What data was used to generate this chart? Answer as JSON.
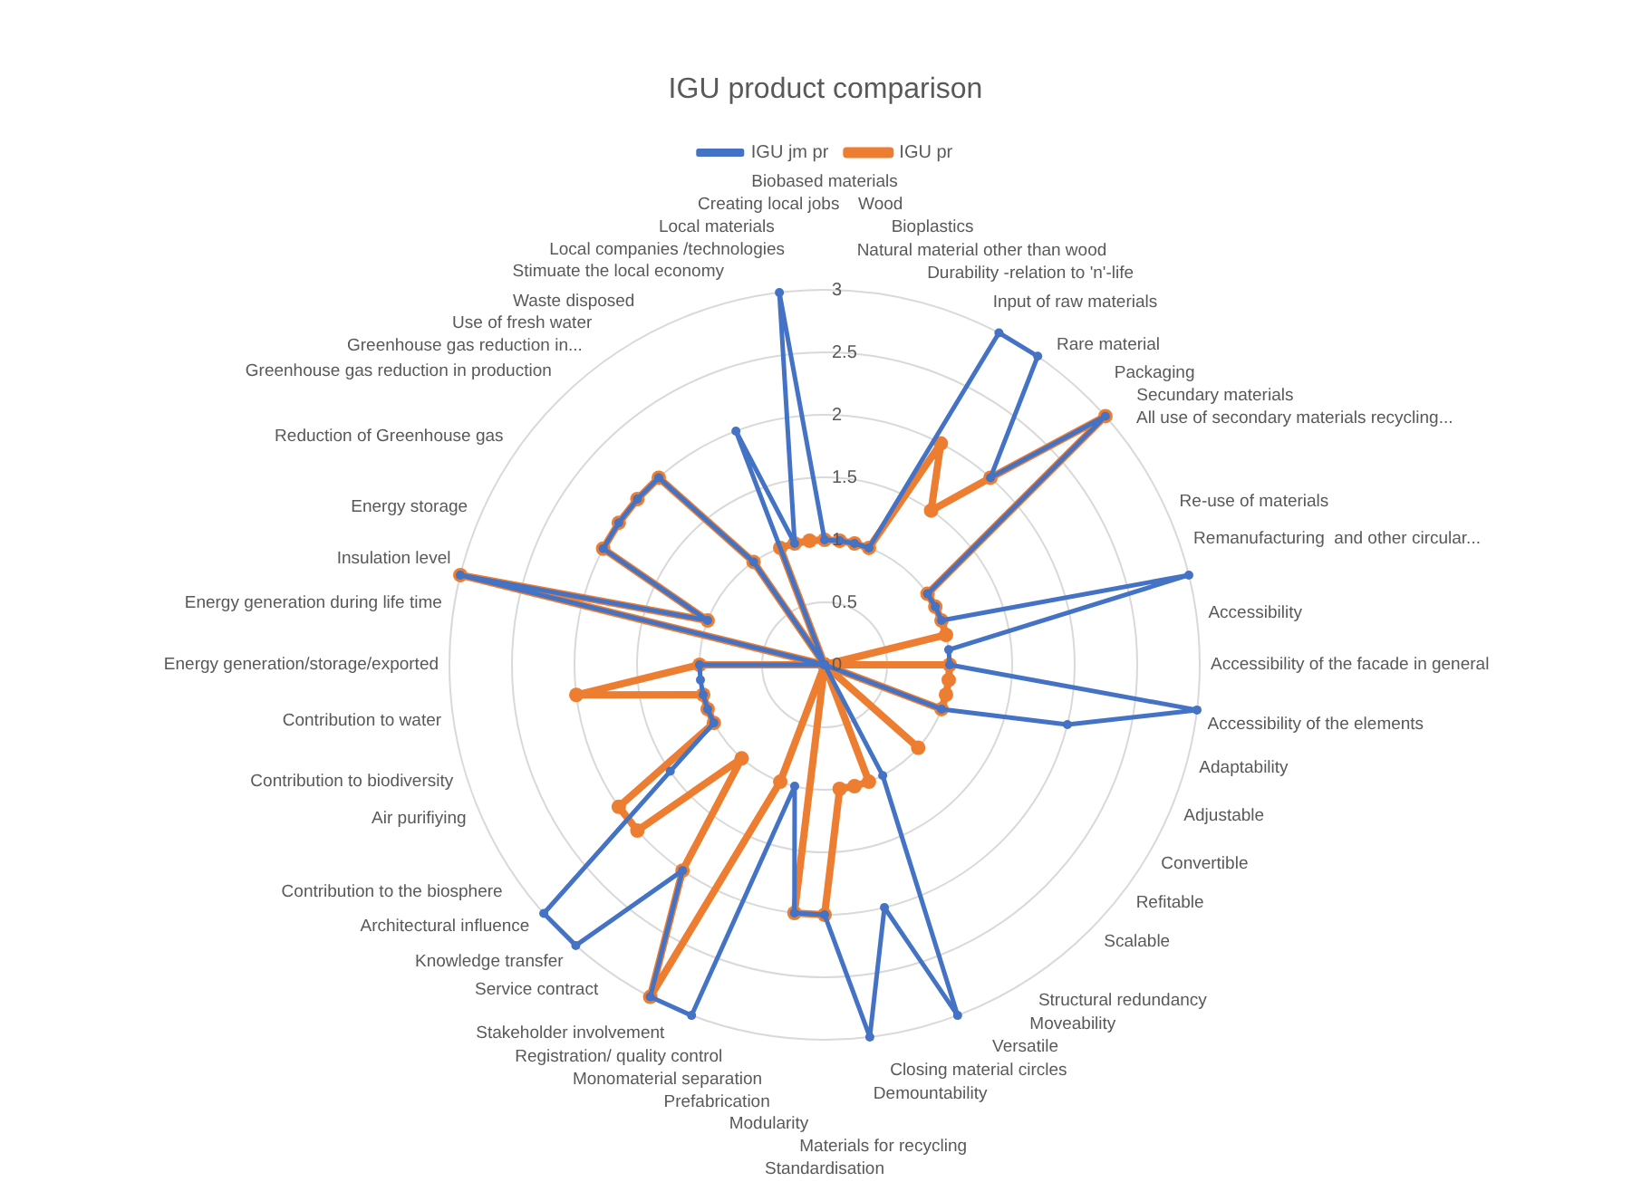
{
  "chart_data": {
    "type": "radar",
    "title": "IGU product comparison",
    "categories": [
      "Biobased materials",
      "Wood",
      "Bioplastics",
      "Natural material other than wood",
      "Durability -relation to 'n'-life",
      "Input of raw materials",
      "Rare material",
      "Packaging",
      "Secundary materials",
      "All use of secondary materials recycling...",
      "Re-use of materials",
      "Remanufacturing  and other circular...",
      "Accessibility",
      "Accessibility of the facade in general",
      "Accessibility of the elements",
      "Adaptability",
      "Adjustable",
      "Convertible",
      "Refitable",
      "Scalable",
      "Structural redundancy",
      "Moveability",
      "Versatile",
      "Closing material circles",
      "Demountability",
      "Materials for recycling",
      "Standardisation",
      "Modularity",
      "Prefabrication",
      "Monomaterial separation",
      "Registration/ quality control",
      "Stakeholder involvement",
      "Service contract",
      "Knowledge transfer",
      "Architectural influence",
      "Contribution to the biosphere",
      "Air purifiying",
      "Contribution to biodiversity",
      "Contribution to water",
      "Energy generation/storage/exported",
      "Energy generation during life time",
      "Insulation level",
      "Energy storage",
      "Reduction of Greenhouse gas",
      "Greenhouse gas reduction in production",
      "Greenhouse gas reduction in...",
      "Use of fresh water",
      "Waste disposed",
      "Stimuate the local economy",
      "Local companies /technologies",
      "Local materials",
      "Creating local jobs"
    ],
    "series": [
      {
        "name": "IGU jm pr",
        "color": "#4472c4",
        "values": [
          1,
          1,
          1,
          1,
          3,
          3,
          2,
          3,
          1,
          1,
          1,
          3,
          1,
          1,
          3,
          2,
          1,
          0,
          0,
          0,
          0,
          0,
          1,
          3,
          2,
          3,
          2,
          2,
          1,
          3,
          3,
          2,
          3,
          3,
          1.5,
          1,
          1,
          1,
          1,
          1,
          0,
          3,
          1,
          2,
          2,
          2,
          2,
          1,
          0,
          2,
          1,
          3
        ]
      },
      {
        "name": "IGU pr",
        "color": "#ed7d31",
        "values": [
          1,
          1,
          1,
          1,
          2,
          1.5,
          2,
          3,
          1,
          1,
          1,
          1,
          0,
          1,
          1,
          1,
          1,
          0,
          0,
          1,
          0,
          0,
          0,
          1,
          1,
          1,
          2,
          2,
          0,
          1,
          3,
          2,
          1,
          2,
          2,
          1,
          1,
          1,
          2,
          1,
          0,
          3,
          1,
          2,
          2,
          2,
          2,
          1,
          0,
          1,
          1,
          1
        ]
      }
    ],
    "ylim": [
      0,
      3
    ],
    "yticks": [
      0,
      0.5,
      1,
      1.5,
      2,
      2.5,
      3
    ],
    "grid": true,
    "legend": "top",
    "marker": "circle"
  }
}
